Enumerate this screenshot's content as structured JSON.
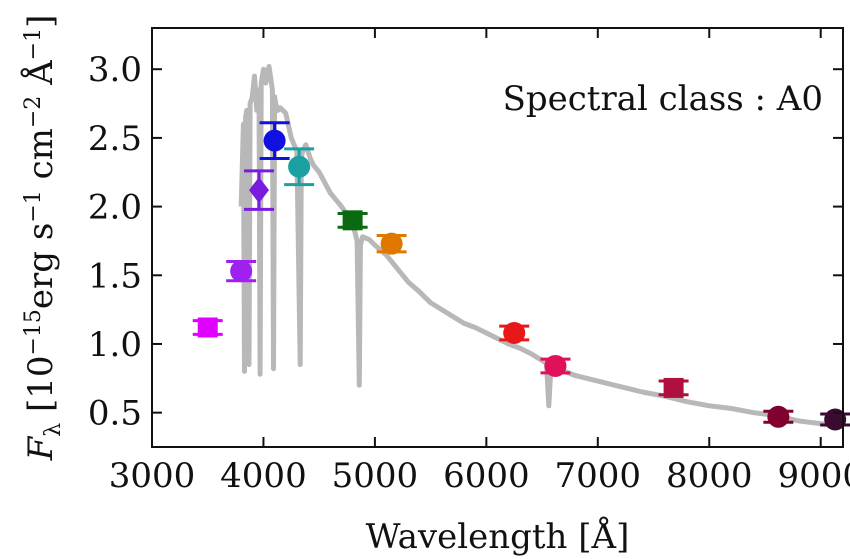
{
  "chart_data": {
    "type": "scatter",
    "title": "",
    "annotation": "Spectral class : A0",
    "xlabel": "Wavelength [Å]",
    "ylabel": "F_λ [10^−15 erg s^−1 cm^−2 Å^−1]",
    "ylabel_parts": {
      "symbol": "F",
      "subscript": "λ",
      "open": " [10",
      "exp1": "−15",
      "erg": "erg s",
      "exp2": "−1",
      "cm": " cm",
      "exp3": "−2",
      "ang": " Å",
      "exp4": "−1",
      "close": "]"
    },
    "xlim": [
      3000,
      9200
    ],
    "ylim": [
      0.25,
      3.3
    ],
    "x_ticks": [
      3000,
      4000,
      5000,
      6000,
      7000,
      8000,
      9000
    ],
    "x_tick_labels": [
      "3000",
      "4000",
      "5000",
      "6000",
      "7000",
      "8000",
      "9000"
    ],
    "y_ticks": [
      0.5,
      1.0,
      1.5,
      2.0,
      2.5,
      3.0
    ],
    "y_tick_labels": [
      "0.5",
      "1.0",
      "1.5",
      "2.0",
      "2.5",
      "3.0"
    ],
    "grid": false,
    "points": [
      {
        "x": 3500,
        "y": 1.12,
        "err": 0.05,
        "marker": "square",
        "color": "#e000ff"
      },
      {
        "x": 3800,
        "y": 1.53,
        "err": 0.07,
        "marker": "circle",
        "color": "#a020f0"
      },
      {
        "x": 3960,
        "y": 2.12,
        "err": 0.14,
        "marker": "diamond",
        "color": "#7a1ce0"
      },
      {
        "x": 4100,
        "y": 2.48,
        "err": 0.13,
        "marker": "circle",
        "color": "#1010e0"
      },
      {
        "x": 4320,
        "y": 2.29,
        "err": 0.13,
        "marker": "circle",
        "color": "#1aa0a0"
      },
      {
        "x": 4800,
        "y": 1.9,
        "err": 0.05,
        "marker": "square",
        "color": "#0a6a10"
      },
      {
        "x": 5150,
        "y": 1.73,
        "err": 0.06,
        "marker": "circle",
        "color": "#e07800"
      },
      {
        "x": 6250,
        "y": 1.08,
        "err": 0.05,
        "marker": "circle",
        "color": "#e81818"
      },
      {
        "x": 6620,
        "y": 0.84,
        "err": 0.05,
        "marker": "circle",
        "color": "#e0105a"
      },
      {
        "x": 7680,
        "y": 0.68,
        "err": 0.05,
        "marker": "square",
        "color": "#b01040"
      },
      {
        "x": 8620,
        "y": 0.47,
        "err": 0.04,
        "marker": "circle",
        "color": "#800030"
      },
      {
        "x": 9130,
        "y": 0.45,
        "err": 0.04,
        "marker": "circle",
        "color": "#3a0a30"
      }
    ],
    "spectrum": {
      "color": "#b8b8b8",
      "x": [
        3800,
        3820,
        3830,
        3840,
        3850,
        3860,
        3870,
        3880,
        3900,
        3920,
        3940,
        3960,
        3970,
        3980,
        4000,
        4020,
        4050,
        4080,
        4090,
        4100,
        4110,
        4130,
        4150,
        4200,
        4250,
        4300,
        4330,
        4340,
        4350,
        4380,
        4420,
        4450,
        4500,
        4600,
        4700,
        4800,
        4840,
        4860,
        4870,
        4890,
        4950,
        5000,
        5100,
        5200,
        5300,
        5400,
        5500,
        5600,
        5700,
        5800,
        5900,
        6000,
        6100,
        6200,
        6300,
        6400,
        6500,
        6540,
        6560,
        6580,
        6620,
        6700,
        6800,
        6900,
        7000,
        7200,
        7400,
        7600,
        7800,
        8000,
        8200,
        8400,
        8600,
        8700,
        8800,
        8900,
        9000,
        9100,
        9200
      ],
      "y": [
        2.0,
        2.6,
        0.8,
        2.65,
        2.7,
        2.55,
        0.85,
        2.75,
        2.8,
        2.95,
        2.7,
        2.85,
        0.78,
        2.9,
        3.0,
        2.9,
        3.02,
        2.85,
        0.82,
        2.8,
        2.75,
        2.7,
        2.72,
        2.68,
        2.5,
        2.4,
        0.85,
        2.35,
        2.4,
        2.45,
        2.35,
        2.3,
        2.25,
        2.1,
        2.0,
        1.88,
        1.75,
        0.7,
        1.72,
        1.78,
        1.76,
        1.72,
        1.65,
        1.55,
        1.45,
        1.38,
        1.3,
        1.25,
        1.2,
        1.15,
        1.12,
        1.08,
        1.04,
        1.0,
        0.97,
        0.93,
        0.88,
        0.86,
        0.55,
        0.84,
        0.83,
        0.8,
        0.77,
        0.75,
        0.73,
        0.69,
        0.65,
        0.62,
        0.58,
        0.55,
        0.53,
        0.5,
        0.48,
        0.46,
        0.44,
        0.43,
        0.42,
        0.41,
        0.4
      ]
    }
  }
}
